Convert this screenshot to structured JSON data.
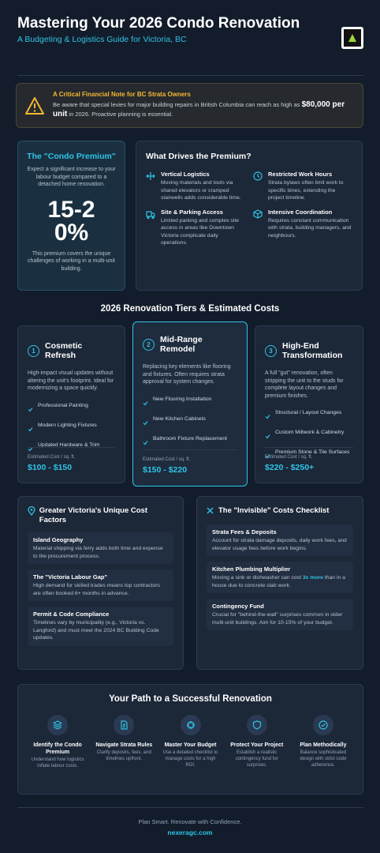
{
  "header": {
    "title": "Mastering Your 2026 Condo Renovation",
    "subtitle": "A Budgeting & Logistics Guide for Victoria, BC"
  },
  "alert": {
    "title": "A Critical Financial Note for BC Strata Owners",
    "text_before": "Be aware that special levies for major building repairs in British Columbia can reach as high as",
    "highlight": "$80,000 per unit",
    "text_after": "in 2026. Proactive planning is essential."
  },
  "premium": {
    "title": "The \"Condo Premium\"",
    "text": "Expect a significant increase to your labour budget compared to a detached home renovation.",
    "figure": "15-20%",
    "note": "This premium covers the unique challenges of working in a multi-unit building."
  },
  "drivers": {
    "title": "What Drives the Premium?",
    "items": [
      {
        "title": "Vertical Logistics",
        "text": "Moving materials and tools via shared elevators or cramped stairwells adds considerable time."
      },
      {
        "title": "Restricted Work Hours",
        "text": "Strata bylaws often limit work to specific times, extending the project timeline."
      },
      {
        "title": "Site & Parking Access",
        "text": "Limited parking and complex site access in areas like Downtown Victoria complicate daily operations."
      },
      {
        "title": "Intensive Coordination",
        "text": "Requires constant communication with strata, building managers, and neighbours."
      }
    ]
  },
  "tiers": {
    "title": "2026 Renovation Tiers & Estimated Costs",
    "items": [
      {
        "number": "1",
        "name": "Cosmetic Refresh",
        "text": "High-impact visual updates without altering the unit's footprint. Ideal for modernizing a space quickly.",
        "features": [
          "Professional Painting",
          "Modern Lighting Fixtures",
          "Updated Hardware & Trim"
        ],
        "cost_label": "Estimated Cost / sq. ft.",
        "cost": "$100 - $150"
      },
      {
        "number": "2",
        "name": "Mid-Range Remodel",
        "text": "Replacing key elements like flooring and fixtures. Often requires strata approval for system changes.",
        "features": [
          "New Flooring Installation",
          "New Kitchen Cabinets",
          "Bathroom Fixture Replacement"
        ],
        "cost_label": "Estimated Cost / sq. ft.",
        "cost": "$150 - $220"
      },
      {
        "number": "3",
        "name": "High-End Transformation",
        "text": "A full \"gut\" renovation, often stripping the unit to the studs for complete layout changes and premium finishes.",
        "features": [
          "Structural / Layout Changes",
          "Custom Millwork & Cabinetry",
          "Premium Stone & Tile Surfaces"
        ],
        "cost_label": "Estimated Cost / sq. ft.",
        "cost": "$220 - $250+"
      }
    ]
  },
  "factors": {
    "title": "Greater Victoria's Unique Cost Factors",
    "items": [
      {
        "title": "Island Geography",
        "text": "Material shipping via ferry adds both time and expense to the procurement process."
      },
      {
        "title": "The \"Victoria Labour Gap\"",
        "text": "High demand for skilled trades means top contractors are often booked 6+ months in advance."
      },
      {
        "title": "Permit & Code Compliance",
        "text": "Timelines vary by municipality (e.g., Victoria vs. Langford) and must meet the 2024 BC Building Code updates."
      }
    ]
  },
  "checklist": {
    "title": "The \"Invisible\" Costs Checklist",
    "items": [
      {
        "title": "Strata Fees & Deposits",
        "text": "Account for strata damage deposits, daily work fees, and elevator usage fees before work begins."
      },
      {
        "title": "Kitchen Plumbing Multiplier",
        "text_before": "Moving a sink or dishwasher can cost",
        "highlight": "3x more",
        "text_after": "than in a house due to concrete slab work."
      },
      {
        "title": "Contingency Fund",
        "text": "Crucial for \"behind-the-wall\" surprises common in older multi-unit buildings. Aim for 10-15% of your budget."
      }
    ]
  },
  "path": {
    "title": "Your Path to a Successful Renovation",
    "steps": [
      {
        "title": "Identify the Condo Premium",
        "text": "Understand how logistics inflate labour costs."
      },
      {
        "title": "Navigate Strata Rules",
        "text": "Clarify deposits, fees, and timelines upfront."
      },
      {
        "title": "Master Your Budget",
        "text": "Use a detailed checklist to manage costs for a high ROI."
      },
      {
        "title": "Protect Your Project",
        "text": "Establish a realistic contingency fund for surprises."
      },
      {
        "title": "Plan Methodically",
        "text": "Balance sophisticated design with strict code adherence."
      }
    ]
  },
  "footer": {
    "tagline": "Plan Smart. Renovate with Confidence.",
    "site": "nexeragc.com"
  }
}
